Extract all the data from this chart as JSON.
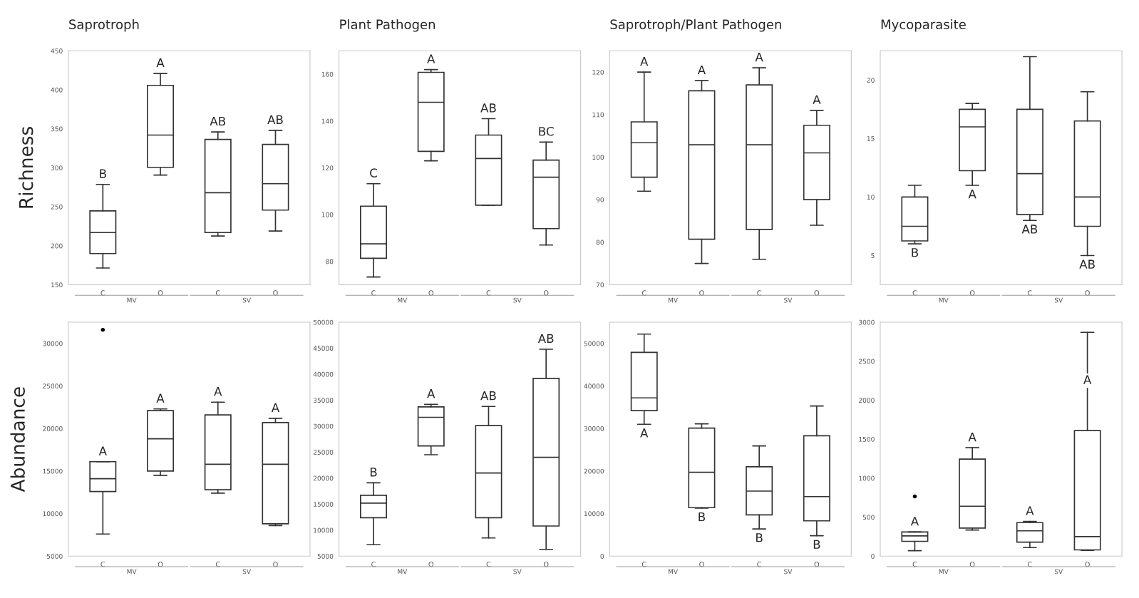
{
  "chart_data": [
    {
      "type": "box",
      "title": "Saprotroph",
      "ylabel": "Richness",
      "categories": [
        "C",
        "O",
        "C",
        "O"
      ],
      "ylim": [
        150,
        450
      ],
      "yticks": [
        150,
        200,
        250,
        300,
        350,
        400,
        450
      ],
      "boxes": [
        {
          "low": 171.5,
          "q1": 190,
          "median": 217,
          "q3": 244.7,
          "high": 278.7
        },
        {
          "low": 290.7,
          "q1": 300.6,
          "median": 342,
          "q3": 405.7,
          "high": 421
        },
        {
          "low": 212.6,
          "q1": 217,
          "median": 268,
          "q3": 336.4,
          "high": 346
        },
        {
          "low": 219,
          "q1": 245.8,
          "median": 279.6,
          "q3": 330,
          "high": 348
        }
      ],
      "annotations": [
        {
          "text": "B",
          "y": 278.7
        },
        {
          "text": "A",
          "y": 421
        },
        {
          "text": "AB",
          "y": 346
        },
        {
          "text": "AB",
          "y": 348
        },
        "MV",
        "SV"
      ]
    },
    {
      "type": "box",
      "title": "Plant Pathogen",
      "categories": [
        "C",
        "O",
        "C",
        "O"
      ],
      "ylim": [
        70,
        170
      ],
      "yticks": [
        80,
        100,
        120,
        140,
        160
      ],
      "boxes": [
        {
          "low": 73.3,
          "q1": 81.3,
          "median": 87.5,
          "q3": 103.6,
          "high": 113.2
        },
        {
          "low": 123,
          "q1": 127,
          "median": 148,
          "q3": 160.8,
          "high": 162
        },
        {
          "low": 104,
          "q1": 104,
          "median": 124,
          "q3": 134,
          "high": 141
        },
        {
          "low": 87,
          "q1": 94,
          "median": 116,
          "q3": 123.3,
          "high": 131
        }
      ],
      "annotations": [
        {
          "text": "C",
          "y": 113.2
        },
        {
          "text": "A",
          "y": 162
        },
        {
          "text": "AB",
          "y": 141
        },
        {
          "text": "BC",
          "y": 131
        },
        "MV",
        "SV"
      ]
    },
    {
      "type": "box",
      "title": "Saprotroph/Plant Pathogen",
      "categories": [
        "C",
        "O",
        "C",
        "O"
      ],
      "ylim": [
        70,
        125
      ],
      "yticks": [
        70,
        80,
        90,
        100,
        110,
        120
      ],
      "boxes": [
        {
          "low": 92,
          "q1": 95.3,
          "median": 103.4,
          "q3": 108.3,
          "high": 120
        },
        {
          "low": 75,
          "q1": 80.7,
          "median": 102.9,
          "q3": 115.6,
          "high": 118
        },
        {
          "low": 76,
          "q1": 83,
          "median": 102.9,
          "q3": 117,
          "high": 121
        },
        {
          "low": 84,
          "q1": 90,
          "median": 101,
          "q3": 107.5,
          "high": 111
        }
      ],
      "annotations": [
        {
          "text": "A",
          "y": 120
        },
        {
          "text": "A",
          "y": 118
        },
        {
          "text": "A",
          "y": 121
        },
        {
          "text": "A",
          "y": 111
        },
        "MV",
        "SV"
      ]
    },
    {
      "type": "box",
      "title": "Mycoparasite",
      "categories": [
        "C",
        "O",
        "C",
        "O"
      ],
      "ylim": [
        2.5,
        22.5
      ],
      "yticks": [
        5,
        10,
        15,
        20
      ],
      "boxes": [
        {
          "low": 6,
          "q1": 6.25,
          "median": 7.5,
          "q3": 10,
          "high": 11
        },
        {
          "low": 11,
          "q1": 12.25,
          "median": 16,
          "q3": 17.5,
          "high": 18
        },
        {
          "low": 8,
          "q1": 8.5,
          "median": 12,
          "q3": 17.5,
          "high": 22
        },
        {
          "low": 5,
          "q1": 7.5,
          "median": 10,
          "q3": 16.5,
          "high": 19
        }
      ],
      "annotations": [
        {
          "text": "B",
          "y": 6
        },
        {
          "text": "A",
          "y": 11
        },
        {
          "text": "AB",
          "y": 8
        },
        {
          "text": "AB",
          "y": 5
        },
        "MV",
        "SV"
      ]
    },
    {
      "type": "box",
      "ylabel": "Abundance",
      "categories": [
        "C",
        "O",
        "C",
        "O"
      ],
      "ylim": [
        5000,
        32500
      ],
      "yticks": [
        5000,
        10000,
        15000,
        20000,
        25000,
        30000
      ],
      "boxes": [
        {
          "low": 7600,
          "q1": 12600,
          "median": 14100,
          "q3": 16100,
          "high": 16100,
          "outliers": [
            31600
          ]
        },
        {
          "low": 14500,
          "q1": 15000,
          "median": 18800,
          "q3": 22100,
          "high": 22300
        },
        {
          "low": 12400,
          "q1": 12800,
          "median": 15800,
          "q3": 21600,
          "high": 23100
        },
        {
          "low": 8600,
          "q1": 8800,
          "median": 15800,
          "q3": 20700,
          "high": 21200
        }
      ],
      "annotations": [
        {
          "text": "A",
          "y": 16100
        },
        {
          "text": "A",
          "y": 22300
        },
        {
          "text": "A",
          "y": 23100
        },
        {
          "text": "A",
          "y": 21200
        },
        "MV",
        "SV"
      ]
    },
    {
      "type": "box",
      "categories": [
        "C",
        "O",
        "C",
        "O"
      ],
      "ylim": [
        5000,
        50000
      ],
      "yticks": [
        5000,
        10000,
        15000,
        20000,
        25000,
        30000,
        35000,
        40000,
        45000,
        50000
      ],
      "boxes": [
        {
          "low": 7200,
          "q1": 12400,
          "median": 15200,
          "q3": 16700,
          "high": 19100
        },
        {
          "low": 24500,
          "q1": 26200,
          "median": 31700,
          "q3": 33700,
          "high": 34200
        },
        {
          "low": 8500,
          "q1": 12400,
          "median": 21000,
          "q3": 30100,
          "high": 33800
        },
        {
          "low": 6300,
          "q1": 10800,
          "median": 24000,
          "q3": 39200,
          "high": 44800
        }
      ],
      "annotations": [
        {
          "text": "B",
          "y": 19100
        },
        {
          "text": "A",
          "y": 34200
        },
        {
          "text": "AB",
          "y": 33800
        },
        {
          "text": "AB",
          "y": 44800
        },
        "MV",
        "SV"
      ]
    },
    {
      "type": "box",
      "categories": [
        "C",
        "O",
        "C",
        "O"
      ],
      "ylim": [
        0,
        55000
      ],
      "yticks": [
        0,
        10000,
        20000,
        30000,
        40000,
        50000
      ],
      "boxes": [
        {
          "low": 31000,
          "q1": 34200,
          "median": 37200,
          "q3": 47900,
          "high": 52200
        },
        {
          "low": 11300,
          "q1": 11400,
          "median": 19700,
          "q3": 30100,
          "high": 31100
        },
        {
          "low": 6400,
          "q1": 9700,
          "median": 15300,
          "q3": 21000,
          "high": 25900
        },
        {
          "low": 4800,
          "q1": 8300,
          "median": 14000,
          "q3": 28300,
          "high": 35300
        }
      ],
      "annotations": [
        {
          "text": "A",
          "y": 31000
        },
        {
          "text": "B",
          "y": 11300
        },
        {
          "text": "B",
          "y": 6400
        },
        {
          "text": "B",
          "y": 4800
        },
        "MV",
        "SV"
      ]
    },
    {
      "type": "box",
      "categories": [
        "C",
        "O",
        "C",
        "O"
      ],
      "ylim": [
        0,
        3000
      ],
      "yticks": [
        0,
        500,
        1000,
        1500,
        2000,
        2500,
        3000
      ],
      "boxes": [
        {
          "low": 70,
          "q1": 190,
          "median": 260,
          "q3": 310,
          "high": 310,
          "outliers": [
            765
          ]
        },
        {
          "low": 335,
          "q1": 360,
          "median": 640,
          "q3": 1245,
          "high": 1390
        },
        {
          "low": 110,
          "q1": 180,
          "median": 325,
          "q3": 430,
          "high": 445
        },
        {
          "low": 75,
          "q1": 80,
          "median": 250,
          "q3": 1610,
          "high": 2870
        }
      ],
      "annotations": [
        {
          "text": "A",
          "y": 310
        },
        {
          "text": "A",
          "y": 1390
        },
        {
          "text": "A",
          "y": 445
        },
        {
          "text": "A",
          "y": 2250
        },
        "MV",
        "SV"
      ]
    }
  ]
}
